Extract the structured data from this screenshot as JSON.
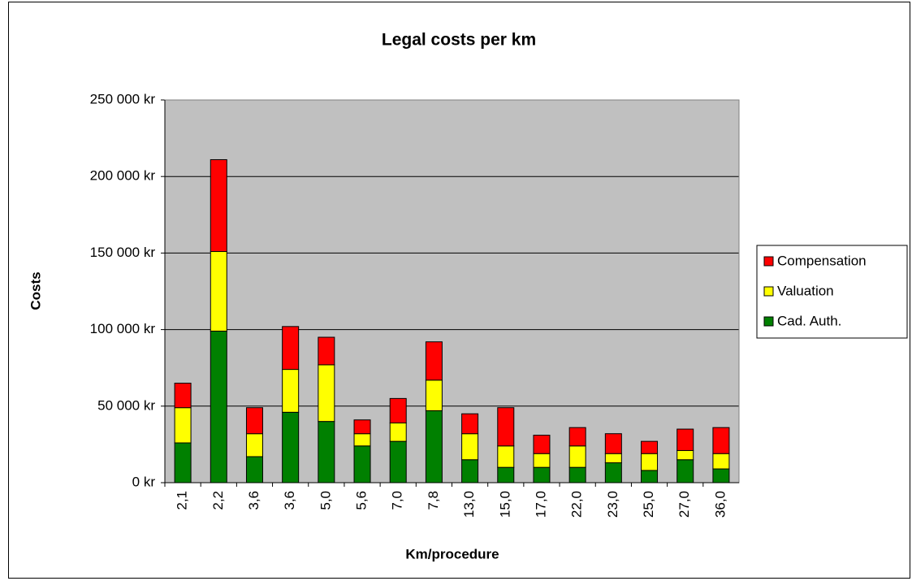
{
  "chart_data": {
    "type": "stacked_bar",
    "title": "Legal costs per km",
    "x_label": "Km/procedure",
    "y_label": "Costs",
    "categories": [
      "2,1",
      "2,2",
      "3,6",
      "3,6",
      "5,0",
      "5,6",
      "7,0",
      "7,8",
      "13,0",
      "15,0",
      "17,0",
      "22,0",
      "23,0",
      "25,0",
      "27,0",
      "36,0"
    ],
    "series": [
      {
        "name": "Cad. Auth.",
        "color": "#008000",
        "values": [
          26000,
          99000,
          17000,
          46000,
          40000,
          24000,
          27000,
          47000,
          15000,
          10000,
          10000,
          10000,
          13000,
          8000,
          15000,
          9000
        ]
      },
      {
        "name": "Valuation",
        "color": "#ffff00",
        "values": [
          23000,
          52000,
          15000,
          28000,
          37000,
          8000,
          12000,
          20000,
          17000,
          14000,
          9000,
          14000,
          6000,
          11000,
          6000,
          10000
        ]
      },
      {
        "name": "Compensation",
        "color": "#ff0000",
        "values": [
          16000,
          60000,
          17000,
          28000,
          18000,
          9000,
          16000,
          25000,
          13000,
          25000,
          12000,
          12000,
          13000,
          8000,
          14000,
          17000
        ]
      }
    ],
    "ylim": [
      0,
      250000
    ],
    "yticks": [
      {
        "value": 0,
        "label": "0 kr"
      },
      {
        "value": 50000,
        "label": "50 000 kr"
      },
      {
        "value": 100000,
        "label": "100 000 kr"
      },
      {
        "value": 150000,
        "label": "150 000 kr"
      },
      {
        "value": 200000,
        "label": "200 000 kr"
      },
      {
        "value": 250000,
        "label": "250 000 kr"
      }
    ],
    "grid": true,
    "legend": "right"
  }
}
